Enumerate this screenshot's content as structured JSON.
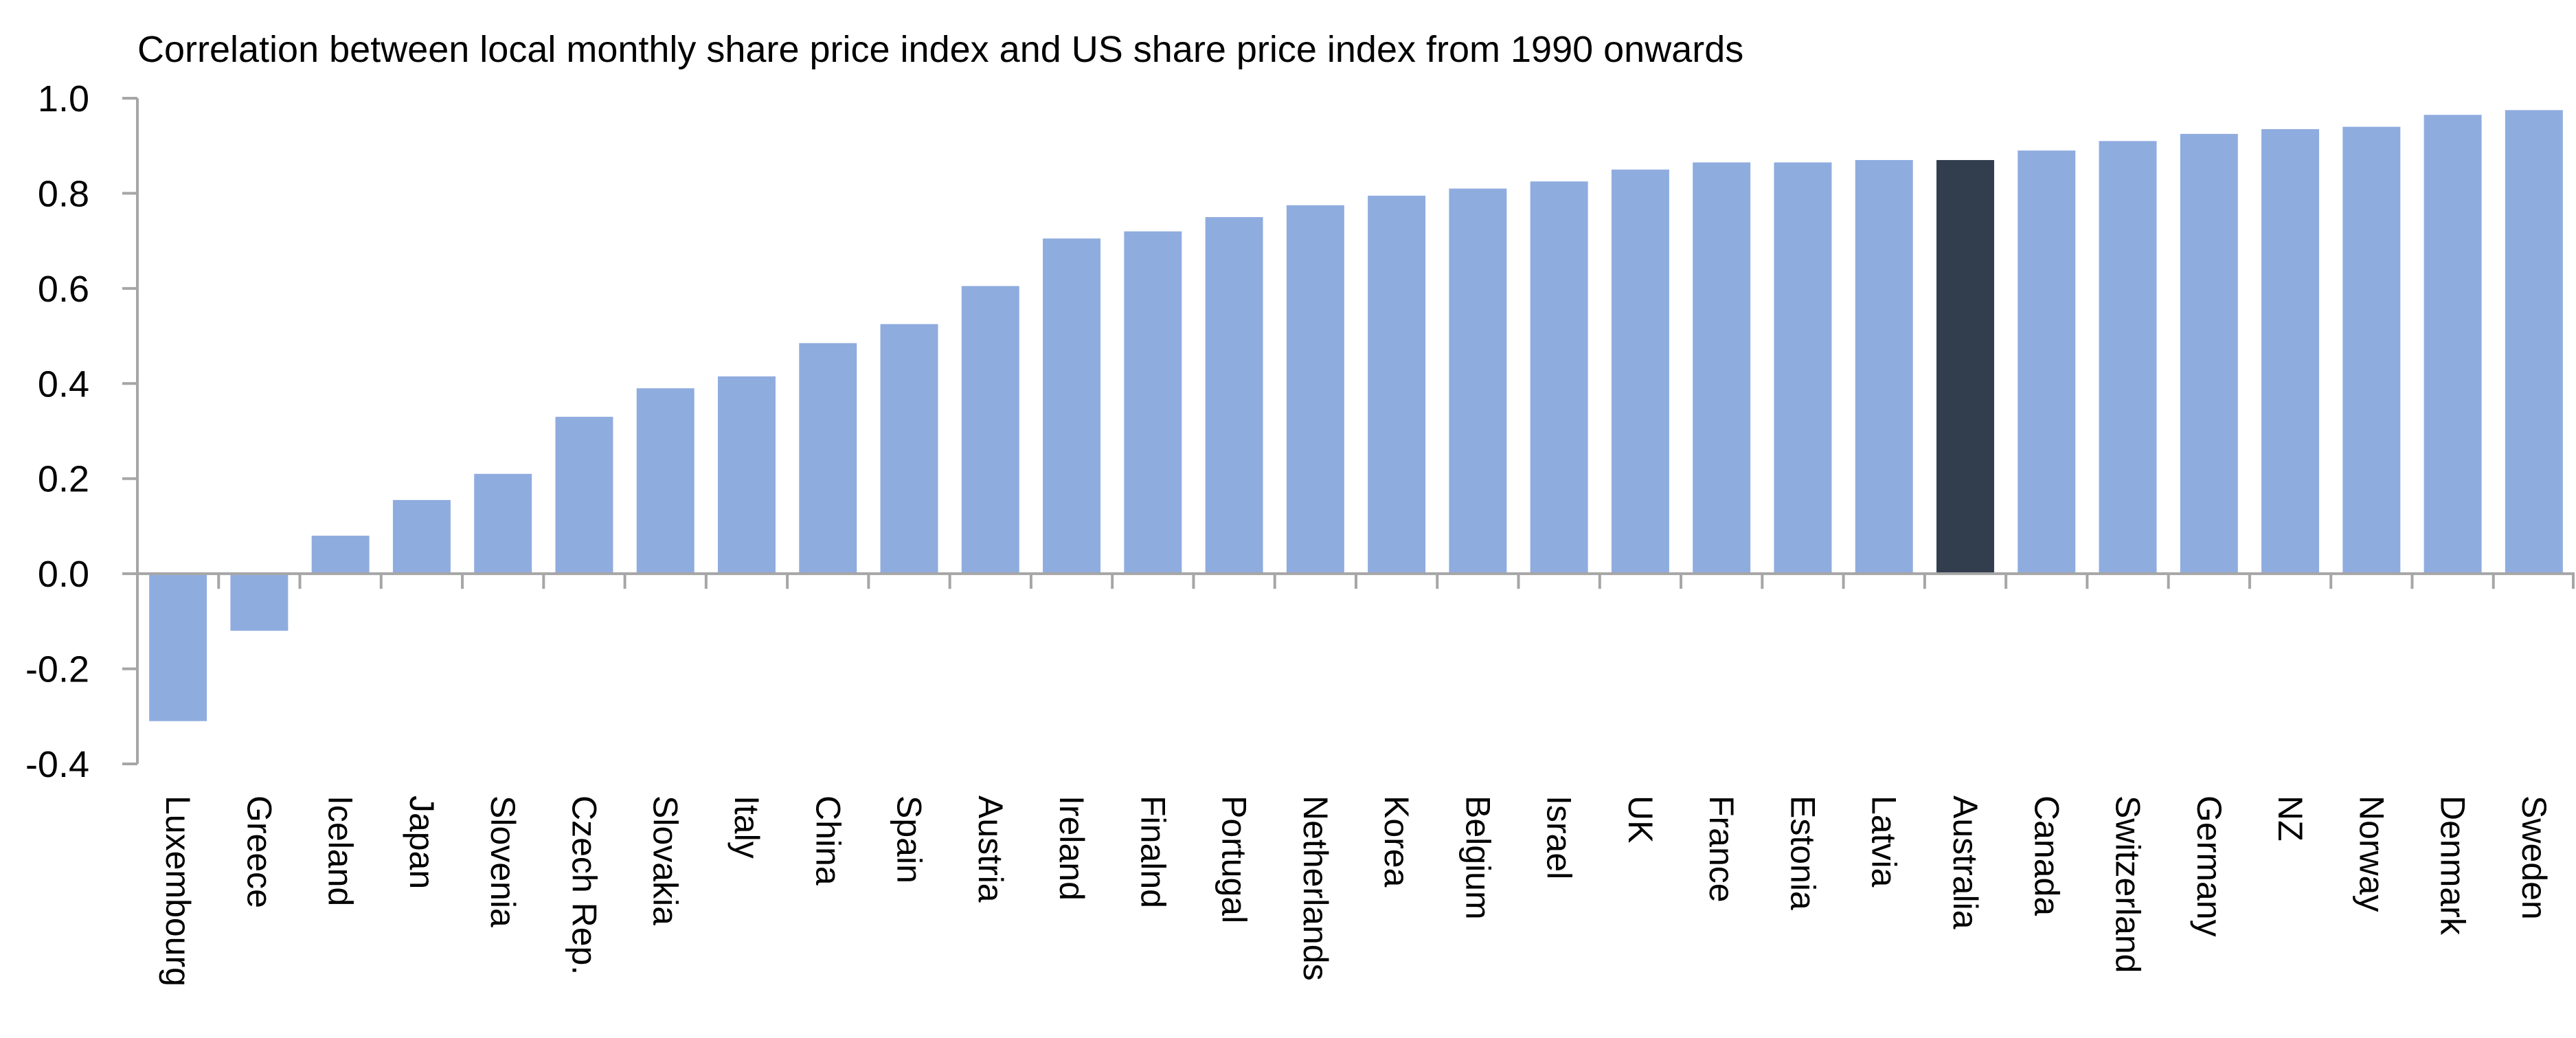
{
  "chart_data": {
    "type": "bar",
    "title": "Correlation between local monthly share price index and US share price index from 1990 onwards",
    "xlabel": "",
    "ylabel": "",
    "ylim": [
      -0.4,
      1.0
    ],
    "yticks": [
      "1.0",
      "0.8",
      "0.6",
      "0.4",
      "0.2",
      "0.0",
      "-0.2",
      "-0.4"
    ],
    "grid": false,
    "legend": "none",
    "bar_color": "#8FACDF",
    "highlight_color": "#323D4E",
    "highlight_category": "Australia",
    "axis_color": "#A6A6A6",
    "categories": [
      "Luxembourg",
      "Greece",
      "Iceland",
      "Japan",
      "Slovenia",
      "Czech Rep.",
      "Slovakia",
      "Italy",
      "China",
      "Spain",
      "Austria",
      "Ireland",
      "Finalnd",
      "Portugal",
      "Netherlands",
      "Korea",
      "Belgium",
      "Israel",
      "UK",
      "France",
      "Estonia",
      "Latvia",
      "Australia",
      "Canada",
      "Switzerland",
      "Germany",
      "NZ",
      "Norway",
      "Denmark",
      "Sweden"
    ],
    "values": [
      -0.31,
      -0.12,
      0.08,
      0.155,
      0.21,
      0.33,
      0.39,
      0.415,
      0.485,
      0.525,
      0.605,
      0.705,
      0.72,
      0.75,
      0.775,
      0.795,
      0.81,
      0.825,
      0.85,
      0.865,
      0.865,
      0.87,
      0.87,
      0.89,
      0.91,
      0.925,
      0.935,
      0.94,
      0.965,
      0.975
    ]
  }
}
